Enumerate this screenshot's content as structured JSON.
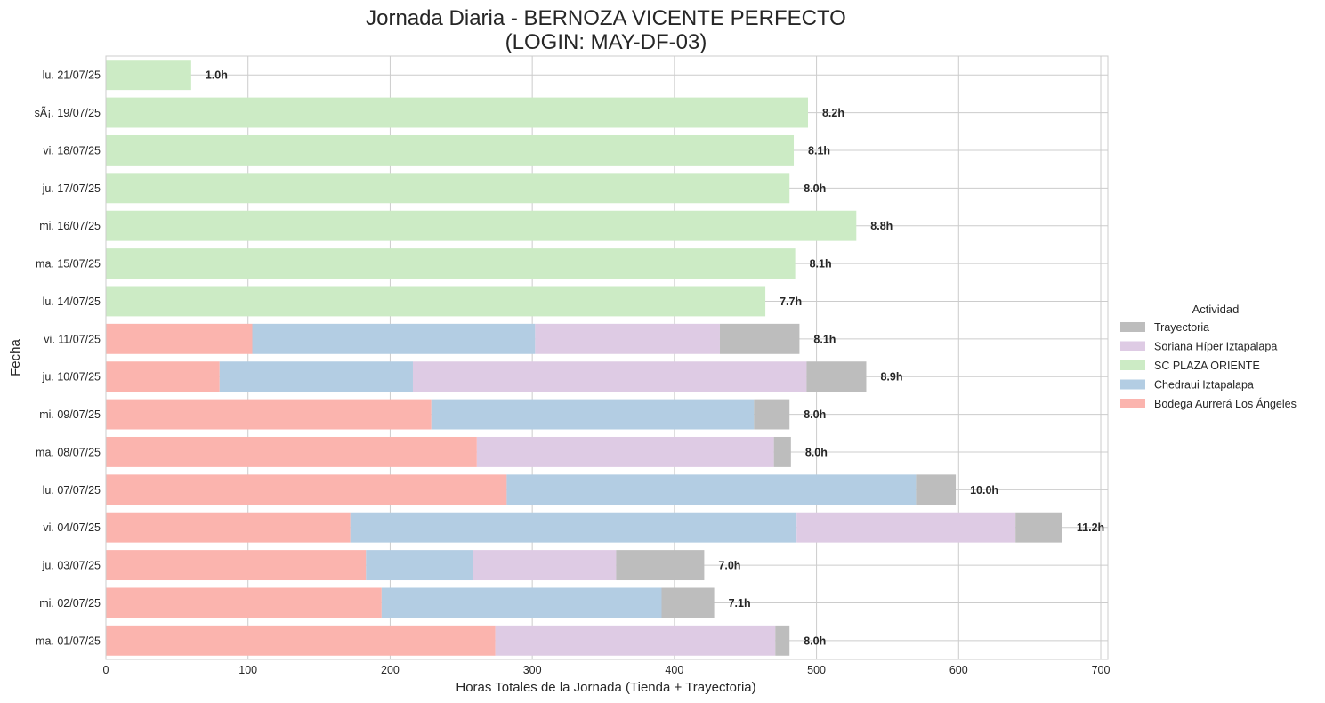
{
  "chart_data": {
    "type": "bar",
    "orientation": "horizontal",
    "stacked": true,
    "title": "Jornada Diaria - BERNOZA VICENTE PERFECTO",
    "subtitle": "(LOGIN: MAY-DF-03)",
    "xlabel": "Horas Totales de la Jornada (Tienda + Trayectoria)",
    "ylabel": "Fecha",
    "xlim": [
      0,
      705
    ],
    "xticks": [
      0,
      100,
      200,
      300,
      400,
      500,
      600,
      700
    ],
    "grid": true,
    "legend_title": "Actividad",
    "legend_placement": "right-center",
    "legend_order": [
      "Trayectoria",
      "Soriana Híper Iztapalapa",
      "SC PLAZA ORIENTE",
      "Chedraui Iztapalapa",
      "Bodega Aurrerá Los Ángeles"
    ],
    "categories": [
      "ma. 01/07/25",
      "mi. 02/07/25",
      "ju. 03/07/25",
      "vi. 04/07/25",
      "lu. 07/07/25",
      "ma. 08/07/25",
      "mi. 09/07/25",
      "ju. 10/07/25",
      "vi. 11/07/25",
      "lu. 14/07/25",
      "ma. 15/07/25",
      "mi. 16/07/25",
      "ju. 17/07/25",
      "vi. 18/07/25",
      "sÃ¡. 19/07/25",
      "lu. 21/07/25"
    ],
    "totals": [
      "8.0h",
      "7.1h",
      "7.0h",
      "11.2h",
      "10.0h",
      "8.0h",
      "8.0h",
      "8.9h",
      "8.1h",
      "7.7h",
      "8.1h",
      "8.8h",
      "8.0h",
      "8.1h",
      "8.2h",
      "1.0h"
    ],
    "series": [
      {
        "name": "Bodega Aurrerá Los Ángeles",
        "color": "#fbb4ae",
        "values": [
          274,
          194,
          183,
          172,
          282,
          261,
          229,
          80,
          103,
          0,
          0,
          0,
          0,
          0,
          0,
          0
        ]
      },
      {
        "name": "Chedraui Iztapalapa",
        "color": "#b3cde3",
        "values": [
          0,
          197,
          75,
          314,
          288,
          0,
          227,
          136,
          199,
          0,
          0,
          0,
          0,
          0,
          0,
          0
        ]
      },
      {
        "name": "SC PLAZA ORIENTE",
        "color": "#ccebc5",
        "values": [
          0,
          0,
          0,
          0,
          0,
          0,
          0,
          0,
          0,
          464,
          485,
          528,
          481,
          484,
          494,
          60
        ]
      },
      {
        "name": "Soriana Híper Iztapalapa",
        "color": "#decbe4",
        "values": [
          197,
          0,
          101,
          154,
          0,
          209,
          0,
          277,
          130,
          0,
          0,
          0,
          0,
          0,
          0,
          0
        ]
      },
      {
        "name": "Trayectoria",
        "color": "#bdbdbd",
        "values": [
          10,
          37,
          62,
          33,
          28,
          12,
          25,
          42,
          56,
          0,
          0,
          0,
          0,
          0,
          0,
          0
        ]
      }
    ]
  }
}
